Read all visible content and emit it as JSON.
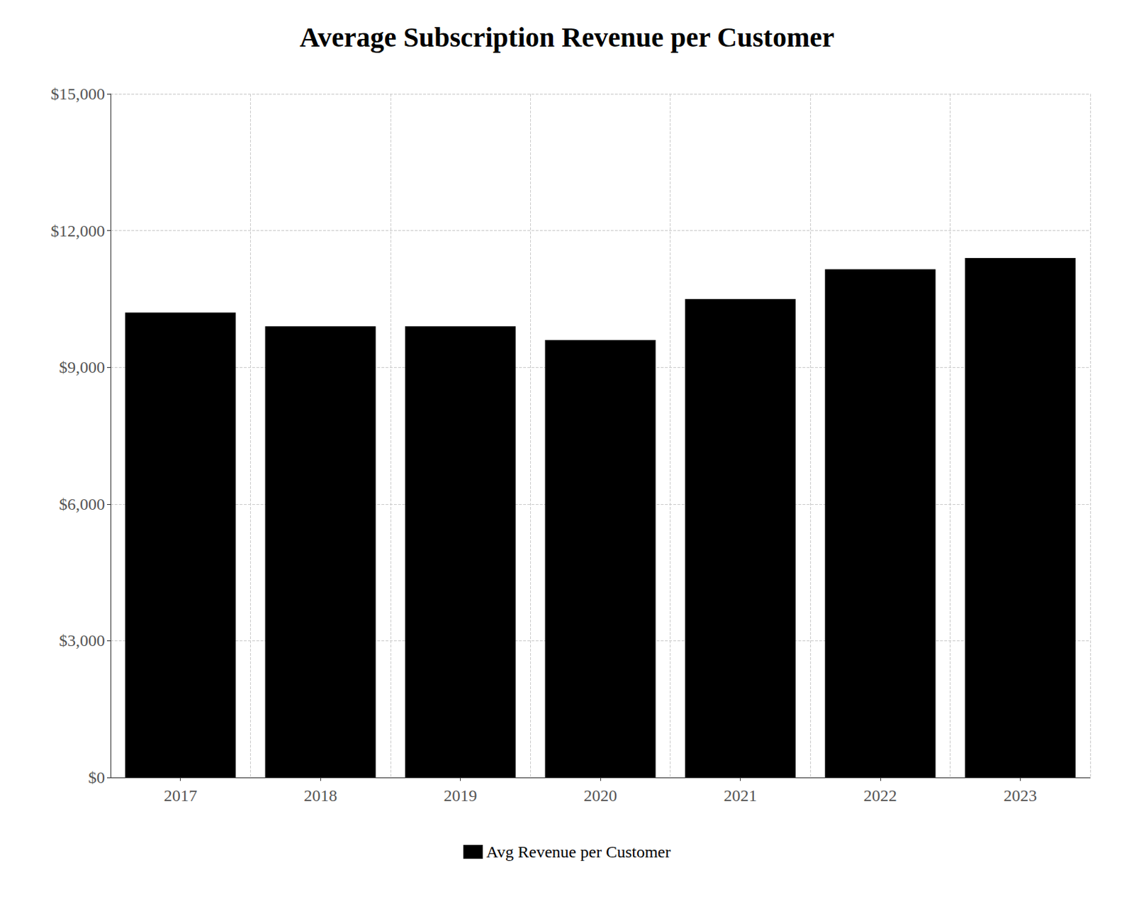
{
  "chart_data": {
    "type": "bar",
    "title": "Average Subscription Revenue per Customer",
    "categories": [
      "2017",
      "2018",
      "2019",
      "2020",
      "2021",
      "2022",
      "2023"
    ],
    "series": [
      {
        "name": "Avg Revenue per Customer",
        "color": "#000000",
        "values": [
          10200,
          9900,
          9900,
          9600,
          10500,
          11150,
          11400
        ]
      }
    ],
    "ylim": [
      0,
      15000
    ],
    "yticks": [
      {
        "value": 0,
        "label": "$0"
      },
      {
        "value": 3000,
        "label": "$3,000"
      },
      {
        "value": 6000,
        "label": "$6,000"
      },
      {
        "value": 9000,
        "label": "$9,000"
      },
      {
        "value": 12000,
        "label": "$12,000"
      },
      {
        "value": 15000,
        "label": "$15,000"
      }
    ],
    "grid": true,
    "legend": "bottom"
  }
}
